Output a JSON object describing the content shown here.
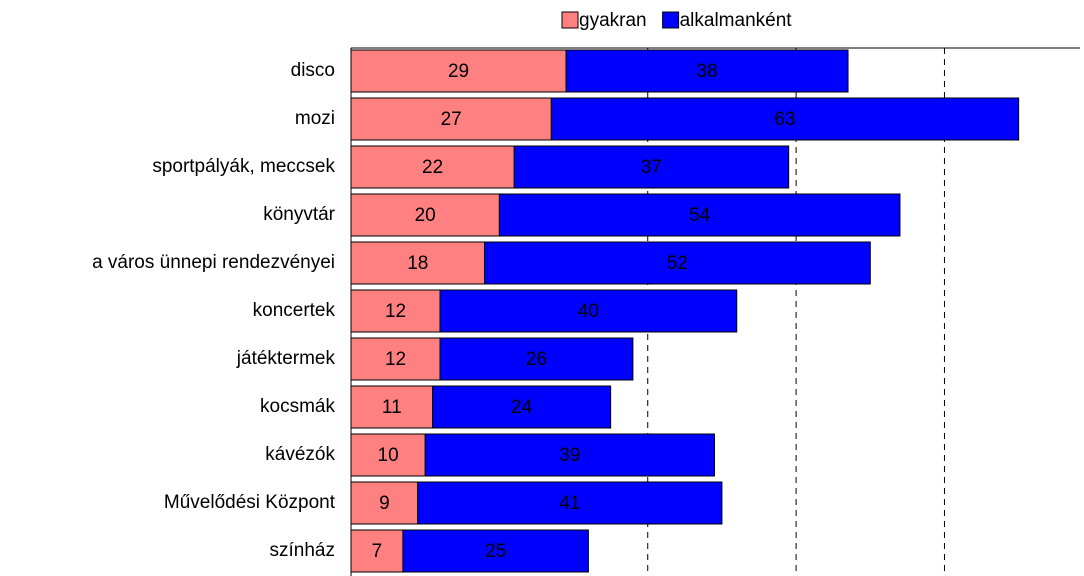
{
  "chart_data": {
    "type": "stacked_barh",
    "categories": [
      "disco",
      "mozi",
      "sportpályák, meccsek",
      "könyvtár",
      "a város ünnepi rendezvényei",
      "koncertek",
      "játéktermek",
      "kocsmák",
      "kávézók",
      "Művelődési Központ",
      "színház"
    ],
    "series": [
      {
        "name": "gyakran",
        "color": "#ff8080",
        "values": [
          29,
          27,
          22,
          20,
          18,
          12,
          12,
          11,
          10,
          9,
          7
        ]
      },
      {
        "name": "alkalmanként",
        "color": "#0000ff",
        "values": [
          38,
          63,
          37,
          54,
          52,
          40,
          26,
          24,
          39,
          41,
          25
        ]
      }
    ],
    "xlim": [
      0,
      98
    ],
    "xticks": [
      40,
      60,
      80
    ],
    "grid": true,
    "legend": "top"
  }
}
